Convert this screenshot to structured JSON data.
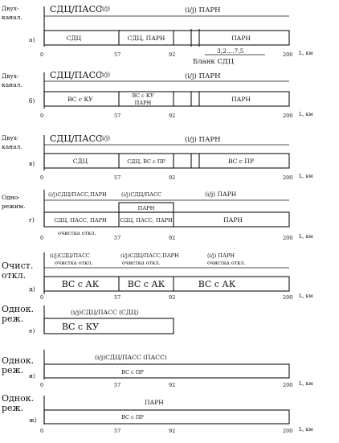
{
  "axis": {
    "unit": "L, км",
    "ticks": [
      "0",
      "57",
      "92",
      "200"
    ]
  },
  "rows": [
    {
      "id": "a",
      "side_label": [
        "Двух-",
        "канал."
      ],
      "letter": "а)",
      "labels": [
        "СДЦ/ПАСС",
        "(i/j)",
        "(i/j) ПАРН"
      ],
      "cells": [
        "СДЦ",
        "СДЦ, ПАРН",
        "ПАРН"
      ],
      "note": "3,2....7,5",
      "blank": "Бланк СДЦ"
    },
    {
      "id": "b",
      "side_label": [
        "Двух-",
        "канал."
      ],
      "letter": "б)",
      "labels": [
        "СДЦ/ПАСС",
        "(i/j)",
        "(i/j) ПАРН"
      ],
      "cells": [
        "ВС с КУ",
        "ВС с КУ",
        "ПАРН",
        "ПАРН"
      ]
    },
    {
      "id": "v",
      "side_label": [
        "Двух-",
        "канал."
      ],
      "letter": "в)",
      "labels": [
        "СДЦ/ПАСС",
        "(i/j)",
        "(i/j) ПАРН"
      ],
      "cells": [
        "СДЦ",
        "СДЦ, ВС с ПР",
        "ВС с ПР"
      ]
    },
    {
      "id": "g",
      "side_label": [
        "Одно-",
        "режим."
      ],
      "letter": "г)",
      "labels": [
        "(i/j)СДЦ/ПАСС,ПАРН",
        "(i/j)СДЦ/ПАСС",
        "(i/j) ПАРН"
      ],
      "cells": [
        "ПАРН",
        "СДЦ, ПАСС, ПАРН",
        "СДЦ, ПАСС, ПАРН",
        "ПАРН"
      ],
      "note": "очистка откл."
    },
    {
      "id": "d",
      "side_label": [
        "Очист.",
        "откл."
      ],
      "letter": "д)",
      "labels": [
        "(i/j)СДЦ/ПАСС",
        "(i/j)СДЦ/ПАСС,ПАРН",
        "(i/j) ПАРН"
      ],
      "sublabels": [
        "очистка откл.",
        "очистка откл.",
        "очистка откл."
      ],
      "cells": [
        "ВС с АК",
        "ВС с АК",
        "ВС с АК"
      ]
    },
    {
      "id": "e",
      "side_label": [
        "Однок.",
        "реж."
      ],
      "letter": "е)",
      "labels": [
        "(i/j)СДЦ/ПАСС (СДЦ)"
      ],
      "cells": [
        "ВС с КУ"
      ]
    },
    {
      "id": "i",
      "side_label": [
        "Однок.",
        "реж."
      ],
      "letter": "и)",
      "labels": [
        "(i/j)СДЦ/ПАСС (ПАСС)"
      ],
      "cells": [
        "ВС с ПР"
      ]
    },
    {
      "id": "zh",
      "side_label": [
        "Однок.",
        "реж."
      ],
      "letter": "ж)",
      "labels": [
        "ПАРН"
      ],
      "cells": [
        "ВС с ПР"
      ]
    }
  ]
}
